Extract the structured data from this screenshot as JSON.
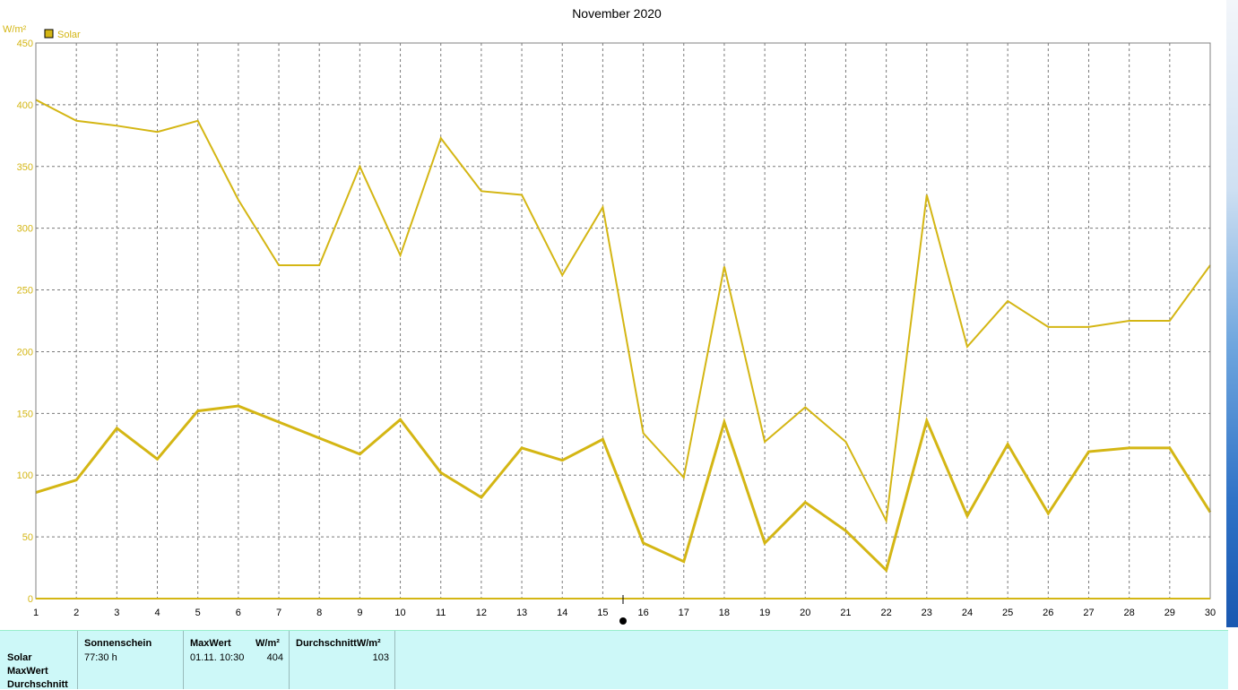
{
  "chart_data": {
    "type": "line",
    "title": "November 2020",
    "unit": "W/m²",
    "ylim": [
      0,
      450
    ],
    "yticks": [
      0,
      50,
      100,
      150,
      200,
      250,
      300,
      350,
      400,
      450
    ],
    "x": [
      1,
      2,
      3,
      4,
      5,
      6,
      7,
      8,
      9,
      10,
      11,
      12,
      13,
      14,
      15,
      16,
      17,
      18,
      19,
      20,
      21,
      22,
      23,
      24,
      25,
      26,
      27,
      28,
      29,
      30
    ],
    "xlim": [
      1,
      30
    ],
    "grid": true,
    "legend": {
      "placement": "top-left",
      "entries": [
        "Solar"
      ]
    },
    "color": "#d4b614",
    "series": [
      {
        "name": "Solar",
        "role": "max",
        "values": [
          404,
          387,
          383,
          378,
          387,
          323,
          270,
          270,
          350,
          278,
          373,
          330,
          327,
          262,
          317,
          134,
          98,
          269,
          127,
          155,
          127,
          63,
          327,
          204,
          241,
          220,
          220,
          225,
          225,
          270
        ]
      },
      {
        "name": "Solar",
        "role": "mean",
        "values": [
          86,
          96,
          138,
          113,
          152,
          156,
          143,
          130,
          117,
          145,
          102,
          82,
          122,
          112,
          129,
          45,
          30,
          143,
          45,
          78,
          55,
          23,
          144,
          67,
          125,
          69,
          119,
          122,
          122,
          70
        ]
      }
    ]
  },
  "info_panel": {
    "rows": [
      "Solar",
      "MaxWert",
      "Durchschnitt"
    ],
    "sonnenschein": {
      "header": "Sonnenschein",
      "value": "77:30 h"
    },
    "maxwert": {
      "header": "MaxWert",
      "unit": "W/m²",
      "time": "01.11.  10:30",
      "value": "404"
    },
    "durchschnitt": {
      "header": "DurchschnittW/m²",
      "value": "103"
    }
  }
}
